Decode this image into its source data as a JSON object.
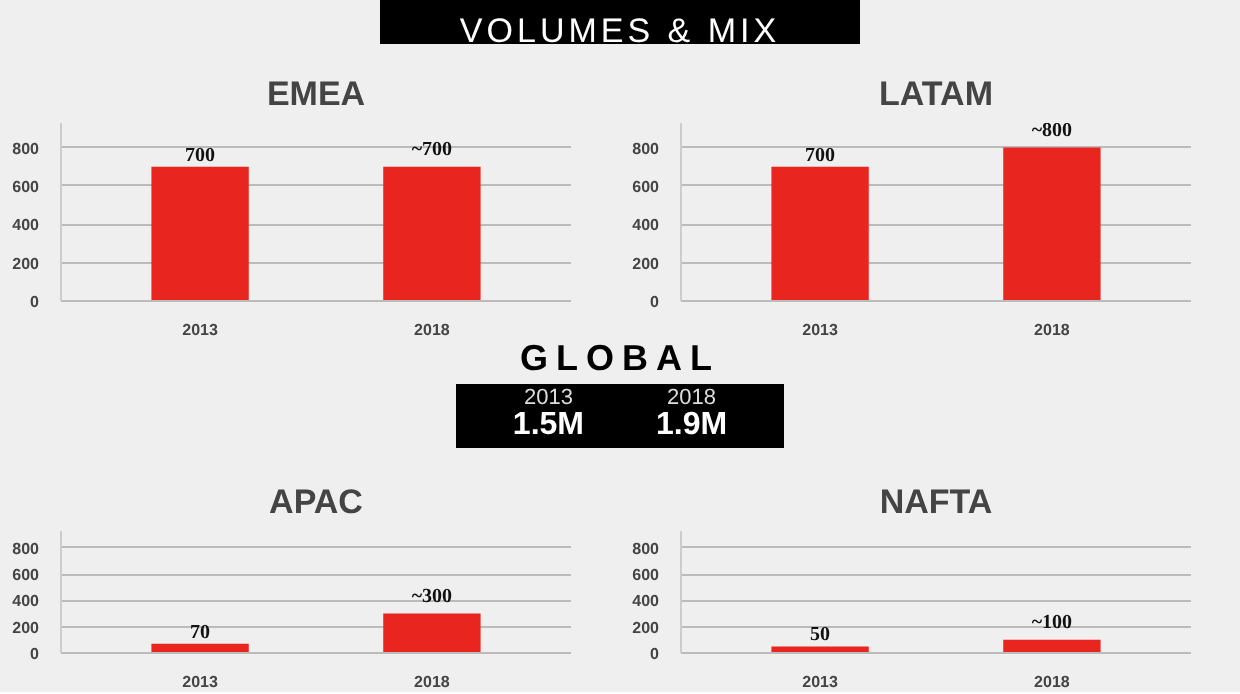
{
  "chart_data": [
    {
      "type": "other",
      "title": "VOLUMES & MIX"
    },
    {
      "type": "bar",
      "title": "EMEA",
      "categories": [
        "2013",
        "2018"
      ],
      "values": [
        700,
        700
      ],
      "value_labels": [
        "700",
        "~700"
      ],
      "color": "#e8251f",
      "ylim": [
        0,
        800
      ],
      "yticks": [
        0,
        200,
        400,
        600,
        800
      ],
      "grid": "y"
    },
    {
      "type": "bar",
      "title": "LATAM",
      "categories": [
        "2013",
        "2018"
      ],
      "values": [
        700,
        800
      ],
      "value_labels": [
        "700",
        "~800"
      ],
      "color": "#e8251f",
      "ylim": [
        0,
        800
      ],
      "yticks": [
        0,
        200,
        400,
        600,
        800
      ],
      "grid": "y"
    },
    {
      "type": "other",
      "title": "GLOBAL",
      "annotations": [
        "2013",
        "1.5M",
        "2018",
        "1.9M"
      ]
    },
    {
      "type": "bar",
      "title": "APAC",
      "categories": [
        "2013",
        "2018"
      ],
      "values": [
        70,
        300
      ],
      "value_labels": [
        "70",
        "~300"
      ],
      "color": "#e8251f",
      "ylim": [
        0,
        800
      ],
      "yticks": [
        0,
        200,
        400,
        600,
        800
      ],
      "grid": "y"
    },
    {
      "type": "bar",
      "title": "NAFTA",
      "categories": [
        "2013",
        "2018"
      ],
      "values": [
        50,
        100
      ],
      "value_labels": [
        "50",
        "~100"
      ],
      "color": "#e8251f",
      "ylim": [
        0,
        800
      ],
      "yticks": [
        0,
        200,
        400,
        600,
        800
      ],
      "grid": "y"
    }
  ]
}
